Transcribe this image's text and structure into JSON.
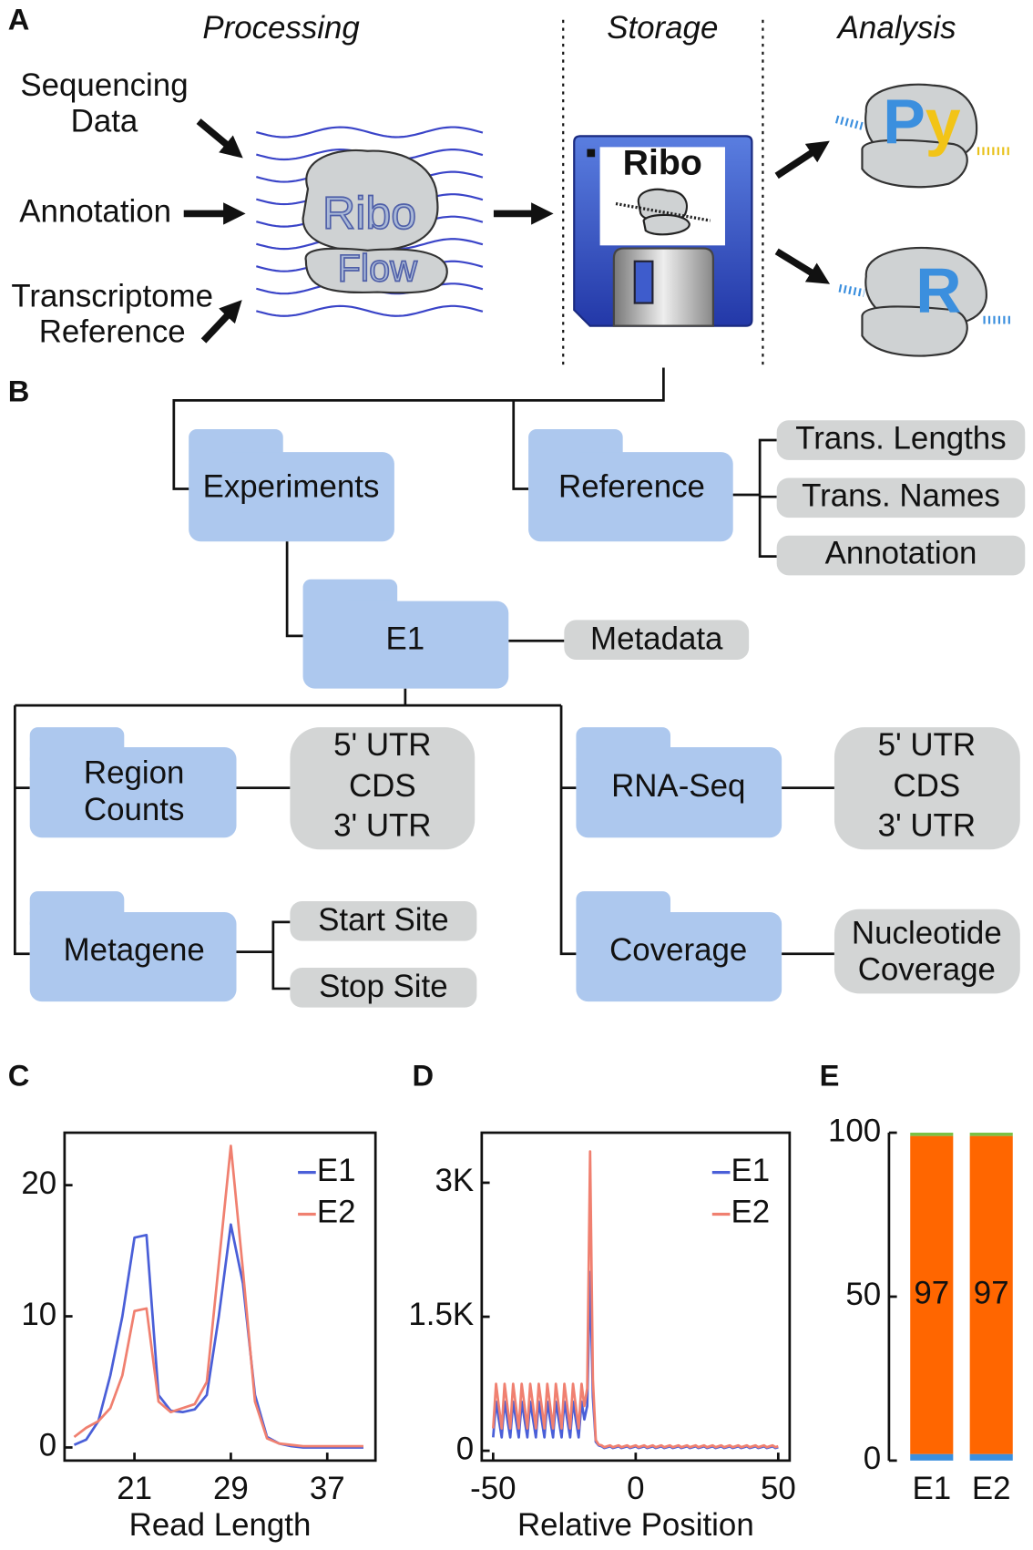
{
  "panel_a": {
    "label": "A",
    "processing": "Processing",
    "storage": "Storage",
    "analysis": "Analysis",
    "inputs": [
      [
        "Sequencing",
        "Data"
      ],
      [
        "Annotation"
      ],
      [
        "Transcriptome",
        "Reference"
      ]
    ],
    "ribo_flow": [
      "Ribo",
      "Flow"
    ],
    "disk_label": "Ribo",
    "languages": [
      "Py",
      "R"
    ]
  },
  "panel_b": {
    "label": "B",
    "root_folders": [
      "Experiments",
      "Reference"
    ],
    "reference_items": [
      "Trans. Lengths",
      "Trans. Names",
      "Annotation"
    ],
    "experiment": "E1",
    "metadata": "Metadata",
    "subfolders": [
      {
        "name": [
          "Region",
          "Counts"
        ],
        "boxes": [
          [
            "5' UTR",
            "CDS",
            "3' UTR"
          ]
        ]
      },
      {
        "name": [
          "RNA-Seq"
        ],
        "boxes": [
          [
            "5' UTR",
            "CDS",
            "3' UTR"
          ]
        ]
      },
      {
        "name": [
          "Metagene"
        ],
        "boxes": [
          [
            "Start Site"
          ],
          [
            "Stop Site"
          ]
        ]
      },
      {
        "name": [
          "Coverage"
        ],
        "boxes": [
          [
            "Nucleotide",
            "Coverage"
          ]
        ]
      }
    ]
  },
  "chart_data": [
    {
      "type": "line",
      "panel": "C",
      "x_label": "Read Length",
      "x": [
        16,
        17,
        18,
        19,
        20,
        21,
        22,
        23,
        24,
        25,
        26,
        27,
        28,
        29,
        30,
        31,
        32,
        33,
        34,
        35,
        36,
        37,
        38,
        39,
        40
      ],
      "series": [
        {
          "name": "E1",
          "color": "#4a5fd8",
          "values": [
            0.2,
            0.6,
            2.0,
            5.5,
            10,
            16,
            16.2,
            4,
            2.8,
            2.7,
            2.9,
            4,
            10,
            17,
            12.5,
            4,
            0.8,
            0.3,
            0.1,
            0,
            0,
            0,
            0,
            0,
            0
          ]
        },
        {
          "name": "E2",
          "color": "#f08070",
          "values": [
            0.8,
            1.5,
            2,
            3,
            5.5,
            10.4,
            10.6,
            3.5,
            2.7,
            3,
            3.3,
            5,
            14,
            23,
            13.5,
            3.5,
            0.7,
            0.3,
            0.2,
            0.1,
            0.1,
            0.1,
            0.1,
            0.1,
            0.1
          ]
        }
      ],
      "xlim": [
        15.2,
        41
      ],
      "ylim": [
        -1,
        24
      ],
      "xticks": [
        21,
        29,
        37
      ],
      "yticks": [
        0,
        10,
        20
      ],
      "legend": "upper right"
    },
    {
      "type": "line",
      "panel": "D",
      "x_label": "Relative Position",
      "x": [
        -50,
        -49,
        -48,
        -47,
        -46,
        -45,
        -44,
        -43,
        -42,
        -41,
        -40,
        -39,
        -38,
        -37,
        -36,
        -35,
        -34,
        -33,
        -32,
        -31,
        -30,
        -29,
        -28,
        -27,
        -26,
        -25,
        -24,
        -23,
        -22,
        -21,
        -20,
        -19,
        -18,
        -17,
        -16,
        -15,
        -14,
        -13,
        -12,
        -11,
        -10,
        -9,
        -8,
        -7,
        -6,
        -5,
        -4,
        -3,
        -2,
        -1,
        0,
        1,
        2,
        3,
        4,
        5,
        6,
        7,
        8,
        9,
        10,
        11,
        12,
        13,
        14,
        15,
        16,
        17,
        18,
        19,
        20,
        21,
        22,
        23,
        24,
        25,
        26,
        27,
        28,
        29,
        30,
        31,
        32,
        33,
        34,
        35,
        36,
        37,
        38,
        39,
        40,
        41,
        42,
        43,
        44,
        45,
        46,
        47,
        48,
        49,
        50
      ],
      "series": [
        {
          "name": "E1",
          "color": "#4a5fd8",
          "values": [
            150,
            550,
            350,
            150,
            550,
            350,
            150,
            550,
            350,
            150,
            550,
            350,
            150,
            550,
            350,
            150,
            550,
            350,
            150,
            550,
            350,
            150,
            550,
            350,
            150,
            550,
            350,
            150,
            550,
            350,
            150,
            550,
            350,
            500,
            2000,
            600,
            100,
            60,
            50,
            30,
            40,
            50,
            30,
            40,
            50,
            30,
            40,
            50,
            30,
            40,
            50,
            30,
            40,
            50,
            30,
            40,
            50,
            30,
            40,
            50,
            30,
            40,
            50,
            30,
            40,
            50,
            30,
            40,
            50,
            30,
            40,
            50,
            30,
            40,
            50,
            30,
            40,
            50,
            30,
            40,
            50,
            30,
            40,
            50,
            30,
            40,
            50,
            30,
            40,
            50,
            30,
            40,
            50,
            30,
            40,
            50,
            30,
            40,
            50,
            30,
            40
          ]
        },
        {
          "name": "E2",
          "color": "#f08070",
          "values": [
            250,
            750,
            500,
            250,
            750,
            500,
            250,
            750,
            500,
            250,
            750,
            500,
            250,
            750,
            500,
            250,
            750,
            500,
            250,
            750,
            500,
            250,
            750,
            500,
            250,
            750,
            500,
            250,
            750,
            500,
            250,
            750,
            500,
            700,
            3350,
            800,
            120,
            70,
            60,
            40,
            50,
            60,
            40,
            50,
            60,
            40,
            50,
            60,
            40,
            50,
            60,
            40,
            50,
            60,
            40,
            50,
            60,
            40,
            50,
            60,
            40,
            50,
            60,
            40,
            50,
            60,
            40,
            50,
            60,
            40,
            50,
            60,
            40,
            50,
            60,
            40,
            50,
            60,
            40,
            50,
            60,
            40,
            50,
            60,
            40,
            50,
            60,
            40,
            50,
            60,
            40,
            50,
            60,
            40,
            50,
            60,
            40,
            50,
            60,
            40,
            50
          ]
        }
      ],
      "xlim": [
        -54,
        54
      ],
      "ylim": [
        -110,
        3560
      ],
      "xticks": [
        -50,
        0,
        50
      ],
      "yticks": [
        0,
        {
          "value": 1500,
          "label": "1.5K"
        },
        {
          "value": 3000,
          "label": "3K"
        }
      ],
      "legend": "upper right"
    },
    {
      "type": "stacked_bar",
      "panel": "E",
      "categories": [
        "E1",
        "E2"
      ],
      "series": [
        {
          "color": "#3b8fde",
          "values": [
            2,
            2
          ]
        },
        {
          "color": "#ff6600",
          "values": [
            97,
            97
          ],
          "show_values": true
        },
        {
          "color": "#7ac143",
          "values": [
            1,
            1
          ]
        }
      ],
      "ylim": [
        0,
        100
      ],
      "yticks": [
        0,
        50,
        100
      ]
    }
  ]
}
